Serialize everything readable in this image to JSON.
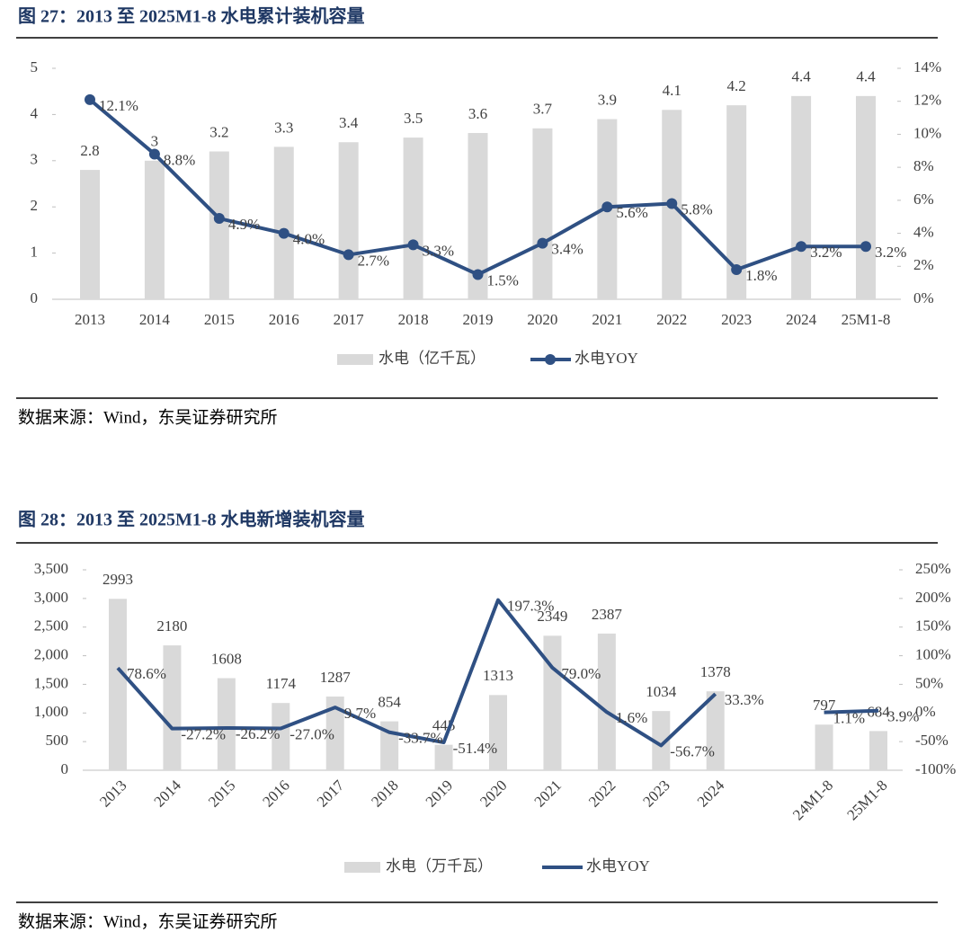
{
  "chart_data": [
    {
      "type": "combo",
      "title": "图 27：2013 至 2025M1-8 水电累计装机容量",
      "source": "数据来源：Wind，东吴证券研究所",
      "categories": [
        "2013",
        "2014",
        "2015",
        "2016",
        "2017",
        "2018",
        "2019",
        "2020",
        "2021",
        "2022",
        "2023",
        "2024",
        "25M1-8"
      ],
      "ylim": [
        0,
        5
      ],
      "yticks": [
        0,
        1,
        2,
        3,
        4,
        5
      ],
      "y2lim": [
        0,
        14
      ],
      "y2ticks": [
        {
          "value": 0,
          "label": "0%"
        },
        {
          "value": 2,
          "label": "2%"
        },
        {
          "value": 4,
          "label": "4%"
        },
        {
          "value": 6,
          "label": "6%"
        },
        {
          "value": 8,
          "label": "8%"
        },
        {
          "value": 10,
          "label": "10%"
        },
        {
          "value": 12,
          "label": "12%"
        },
        {
          "value": 14,
          "label": "14%"
        }
      ],
      "line_markers": true,
      "series": [
        {
          "name": "水电（亿千瓦）",
          "type": "bar",
          "color": "#d9d9d9",
          "values": [
            2.8,
            3.0,
            3.2,
            3.3,
            3.4,
            3.5,
            3.6,
            3.7,
            3.9,
            4.1,
            4.2,
            4.4,
            4.4
          ]
        },
        {
          "name": "水电YOY",
          "type": "line",
          "axis": "y2",
          "color": "#2f5083",
          "values": [
            12.1,
            8.8,
            4.9,
            4.0,
            2.7,
            3.3,
            1.5,
            3.4,
            5.6,
            5.8,
            1.8,
            3.2,
            3.2
          ],
          "value_labels": [
            "12.1%",
            "8.8%",
            "4.9%",
            "4.0%",
            "2.7%",
            "3.3%",
            "1.5%",
            "3.4%",
            "5.6%",
            "5.8%",
            "1.8%",
            "3.2%",
            "3.2%"
          ]
        }
      ]
    },
    {
      "type": "combo",
      "title": "图 28：2013 至 2025M1-8 水电新增装机容量",
      "source": "数据来源：Wind，东吴证券研究所",
      "categories": [
        "2013",
        "2014",
        "2015",
        "2016",
        "2017",
        "2018",
        "2019",
        "2020",
        "2021",
        "2022",
        "2023",
        "2024",
        null,
        "24M1-8",
        "25M1-8"
      ],
      "ylim": [
        0,
        3500
      ],
      "yticks": [
        0,
        500,
        {
          "value": 1000,
          "label": "1,000"
        },
        {
          "value": 1500,
          "label": "1,500"
        },
        {
          "value": 2000,
          "label": "2,000"
        },
        {
          "value": 2500,
          "label": "2,500"
        },
        {
          "value": 3000,
          "label": "3,000"
        },
        {
          "value": 3500,
          "label": "3,500"
        }
      ],
      "y2lim": [
        -100,
        250
      ],
      "y2ticks": [
        {
          "value": -100,
          "label": "-100%"
        },
        {
          "value": -50,
          "label": "-50%"
        },
        {
          "value": 0,
          "label": "0%"
        },
        {
          "value": 50,
          "label": "50%"
        },
        {
          "value": 100,
          "label": "100%"
        },
        {
          "value": 150,
          "label": "150%"
        },
        {
          "value": 200,
          "label": "200%"
        },
        {
          "value": 250,
          "label": "250%"
        }
      ],
      "line_markers": false,
      "series": [
        {
          "name": "水电（万千瓦）",
          "type": "bar",
          "color": "#d9d9d9",
          "values": [
            2993,
            2180,
            1608,
            1174,
            1287,
            854,
            445,
            1313,
            2349,
            2387,
            1034,
            1378,
            null,
            797,
            684
          ]
        },
        {
          "name": "水电YOY",
          "type": "line",
          "axis": "y2",
          "color": "#2f5083",
          "values": [
            78.6,
            -27.2,
            -26.2,
            -27.0,
            9.7,
            -33.7,
            -51.4,
            197.3,
            79.0,
            1.6,
            -56.7,
            33.3,
            null,
            1.1,
            3.9
          ],
          "value_labels": [
            "78.6%",
            "-27.2%",
            "-26.2%",
            "-27.0%",
            "9.7%",
            "-33.7%",
            "-51.4%",
            "197.3%",
            "79.0%",
            "1.6%",
            "-56.7%",
            "33.3%",
            null,
            "1.1%",
            "3.9%"
          ]
        }
      ]
    }
  ]
}
